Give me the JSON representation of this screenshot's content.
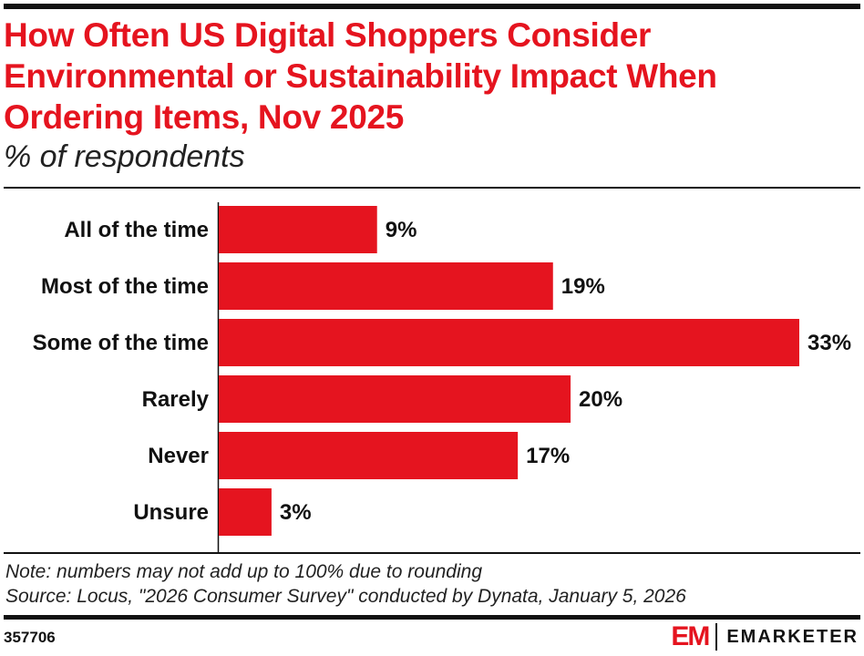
{
  "header": {
    "title": "How Often US Digital Shoppers Consider Environmental or Sustainability Impact When Ordering Items, Nov 2025",
    "subtitle": "% of respondents"
  },
  "chart_data": {
    "type": "bar",
    "orientation": "horizontal",
    "title": "How Often US Digital Shoppers Consider Environmental or Sustainability Impact When Ordering Items, Nov 2025",
    "subtitle": "% of respondents",
    "categories": [
      "All of the time",
      "Most of the time",
      "Some of the time",
      "Rarely",
      "Never",
      "Unsure"
    ],
    "values": [
      9,
      19,
      33,
      20,
      17,
      3
    ],
    "value_labels": [
      "9%",
      "19%",
      "33%",
      "20%",
      "17%",
      "3%"
    ],
    "xlim": [
      0,
      33
    ],
    "xlabel": "",
    "ylabel": "",
    "grid": false,
    "color": "#e5141f"
  },
  "footer": {
    "note": "Note: numbers may not add up to 100% due to rounding",
    "source": "Source: Locus, \"2026 Consumer Survey\" conducted by Dynata, January 5, 2026",
    "chart_id": "357706",
    "brand_mark": "EM",
    "brand_name": "EMARKETER"
  }
}
